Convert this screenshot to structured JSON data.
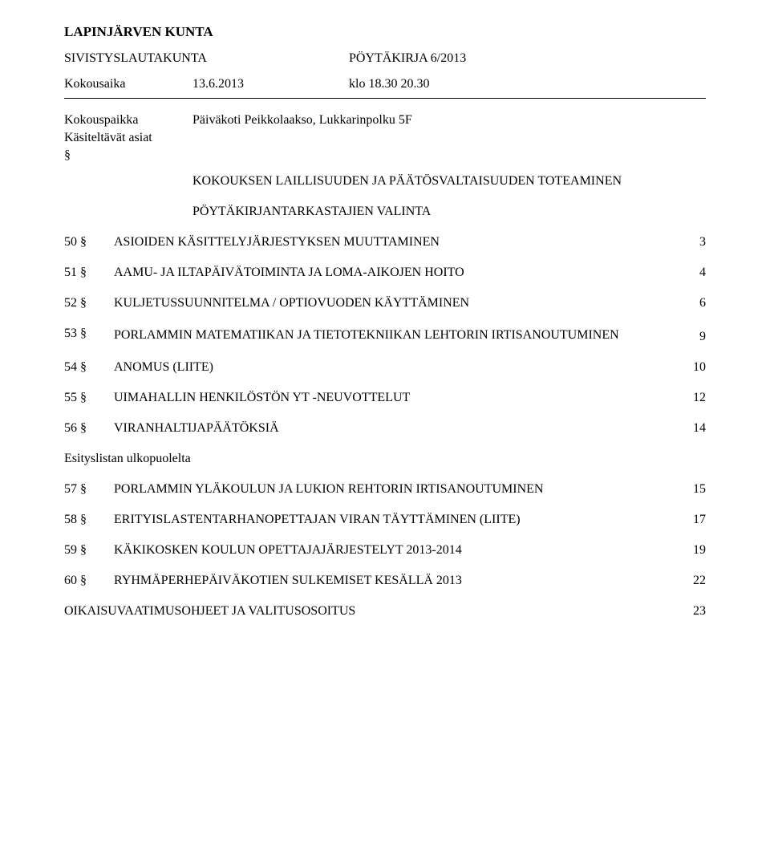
{
  "header": {
    "org": "LAPINJÄRVEN KUNTA",
    "committee": "SIVISTYSLAUTAKUNTA",
    "minutes_label": "PÖYTÄKIRJA 6/2013",
    "meeting_label": "Kokousaika",
    "meeting_date": "13.6.2013",
    "meeting_time": "klo 18.30 20.30",
    "place_label": "Kokouspaikka",
    "place_value": "Päiväkoti Peikkolaakso, Lukkarinpolku 5F",
    "agenda_label": "Käsiteltävät asiat",
    "section_mark": "§"
  },
  "preamble": {
    "line1": "KOKOUKSEN LAILLISUUDEN JA PÄÄTÖSVALTAISUUDEN TOTEAMINEN",
    "line2": "PÖYTÄKIRJANTARKASTAJIEN VALINTA"
  },
  "items": [
    {
      "num": "50 §",
      "title": "ASIOIDEN KÄSITTELYJÄRJESTYKSEN MUUTTAMINEN",
      "page": "3"
    },
    {
      "num": "51 §",
      "title": "AAMU- JA ILTAPÄIVÄTOIMINTA JA LOMA-AIKOJEN HOITO",
      "page": "4"
    },
    {
      "num": "52 §",
      "title": "KULJETUSSUUNNITELMA / OPTIOVUODEN KÄYTTÄMINEN",
      "page": "6"
    },
    {
      "num": "53 §",
      "title": "PORLAMMIN MATEMATIIKAN JA TIETOTEKNIIKAN LEHTORIN IRTISANOUTUMINEN",
      "page": "9"
    },
    {
      "num": "54 §",
      "title": "ANOMUS (LIITE)",
      "page": "10"
    },
    {
      "num": "55 §",
      "title": "UIMAHALLIN HENKILÖSTÖN YT -NEUVOTTELUT",
      "page": "12"
    },
    {
      "num": "56 §",
      "title": "VIRANHALTIJAPÄÄTÖKSIÄ",
      "page": "14"
    }
  ],
  "outside_label": "Esityslistan ulkopuolelta",
  "outside_items": [
    {
      "num": "57 §",
      "title": "PORLAMMIN YLÄKOULUN JA LUKION REHTORIN IRTISANOUTUMINEN",
      "page": "15"
    },
    {
      "num": "58 §",
      "title": "ERITYISLASTENTARHANOPETTAJAN VIRAN TÄYTTÄMINEN (LIITE)",
      "page": "17"
    },
    {
      "num": "59 §",
      "title": "KÄKIKOSKEN KOULUN OPETTAJAJÄRJESTELYT 2013-2014",
      "page": "19"
    },
    {
      "num": "60 §",
      "title": "RYHMÄPERHEPÄIVÄKOTIEN SULKEMISET KESÄLLÄ 2013",
      "page": "22"
    }
  ],
  "footer_item": {
    "title": "OIKAISUVAATIMUSOHJEET JA VALITUSOSOITUS",
    "page": "23"
  }
}
